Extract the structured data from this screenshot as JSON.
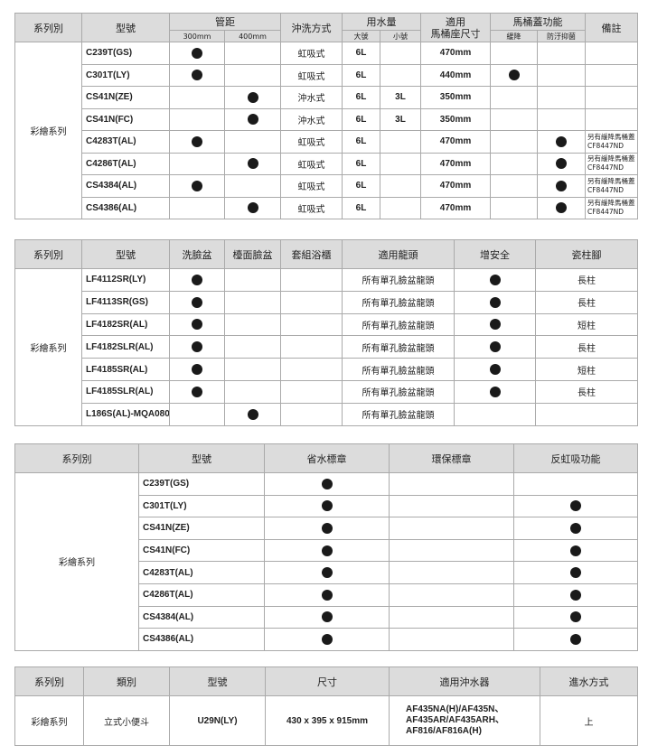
{
  "table1": {
    "headers": {
      "series": "系列別",
      "model": "型號",
      "pipe": "管距",
      "p300": "300mm",
      "p400": "400mm",
      "flush": "沖洗方式",
      "water": "用水量",
      "big": "大號",
      "small": "小號",
      "seat": "適用\n馬桶座尺寸",
      "lid": "馬桶蓋功能",
      "slow": "緩降",
      "anti": "防汙抑菌",
      "note": "備註"
    },
    "series": "彩繪系列",
    "rows": [
      {
        "model": "C239T(GS)",
        "p300": true,
        "p400": false,
        "flush": "虹吸式",
        "big": "6L",
        "small": "",
        "seat": "470mm",
        "slow": false,
        "anti": false,
        "note": ""
      },
      {
        "model": "C301T(LY)",
        "p300": true,
        "p400": false,
        "flush": "虹吸式",
        "big": "6L",
        "small": "",
        "seat": "440mm",
        "slow": true,
        "anti": false,
        "note": ""
      },
      {
        "model": "CS41N(ZE)",
        "p300": false,
        "p400": true,
        "flush": "沖水式",
        "big": "6L",
        "small": "3L",
        "seat": "350mm",
        "slow": false,
        "anti": false,
        "note": ""
      },
      {
        "model": "CS41N(FC)",
        "p300": false,
        "p400": true,
        "flush": "沖水式",
        "big": "6L",
        "small": "3L",
        "seat": "350mm",
        "slow": false,
        "anti": false,
        "note": ""
      },
      {
        "model": "C4283T(AL)",
        "p300": true,
        "p400": false,
        "flush": "虹吸式",
        "big": "6L",
        "small": "",
        "seat": "470mm",
        "slow": false,
        "anti": true,
        "note": "另有緩降馬桶蓋CF8447ND"
      },
      {
        "model": "C4286T(AL)",
        "p300": false,
        "p400": true,
        "flush": "虹吸式",
        "big": "6L",
        "small": "",
        "seat": "470mm",
        "slow": false,
        "anti": true,
        "note": "另有緩降馬桶蓋CF8447ND"
      },
      {
        "model": "CS4384(AL)",
        "p300": true,
        "p400": false,
        "flush": "虹吸式",
        "big": "6L",
        "small": "",
        "seat": "470mm",
        "slow": false,
        "anti": true,
        "note": "另有緩降馬桶蓋CF8447ND"
      },
      {
        "model": "CS4386(AL)",
        "p300": false,
        "p400": true,
        "flush": "虹吸式",
        "big": "6L",
        "small": "",
        "seat": "470mm",
        "slow": false,
        "anti": true,
        "note": "另有緩降馬桶蓋CF8447ND"
      }
    ]
  },
  "table2": {
    "headers": [
      "系列別",
      "型號",
      "洗臉盆",
      "檯面臉盆",
      "套組浴櫃",
      "適用龍頭",
      "增安全",
      "瓷柱腳"
    ],
    "series": "彩繪系列",
    "rows": [
      {
        "model": "LF4112SR(LY)",
        "basin": true,
        "counter": false,
        "set": false,
        "faucet": "所有單孔臉盆龍頭",
        "safe": true,
        "pedestal": "長柱"
      },
      {
        "model": "LF4113SR(GS)",
        "basin": true,
        "counter": false,
        "set": false,
        "faucet": "所有單孔臉盆龍頭",
        "safe": true,
        "pedestal": "長柱"
      },
      {
        "model": "LF4182SR(AL)",
        "basin": true,
        "counter": false,
        "set": false,
        "faucet": "所有單孔臉盆龍頭",
        "safe": true,
        "pedestal": "短柱"
      },
      {
        "model": "LF4182SLR(AL)",
        "basin": true,
        "counter": false,
        "set": false,
        "faucet": "所有單孔臉盆龍頭",
        "safe": true,
        "pedestal": "長柱"
      },
      {
        "model": "LF4185SR(AL)",
        "basin": true,
        "counter": false,
        "set": false,
        "faucet": "所有單孔臉盆龍頭",
        "safe": true,
        "pedestal": "短柱"
      },
      {
        "model": "LF4185SLR(AL)",
        "basin": true,
        "counter": false,
        "set": false,
        "faucet": "所有單孔臉盆龍頭",
        "safe": true,
        "pedestal": "長柱"
      },
      {
        "model": "L186S(AL)-MQA080",
        "basin": false,
        "counter": true,
        "set": false,
        "faucet": "所有單孔臉盆龍頭",
        "safe": false,
        "pedestal": ""
      }
    ]
  },
  "table3": {
    "headers": [
      "系列別",
      "型號",
      "省水標章",
      "環保標章",
      "反虹吸功能"
    ],
    "series": "彩繪系列",
    "rows": [
      {
        "model": "C239T(GS)",
        "water": true,
        "eco": false,
        "anti": false
      },
      {
        "model": "C301T(LY)",
        "water": true,
        "eco": false,
        "anti": true
      },
      {
        "model": "CS41N(ZE)",
        "water": true,
        "eco": false,
        "anti": true
      },
      {
        "model": "CS41N(FC)",
        "water": true,
        "eco": false,
        "anti": true
      },
      {
        "model": "C4283T(AL)",
        "water": true,
        "eco": false,
        "anti": true
      },
      {
        "model": "C4286T(AL)",
        "water": true,
        "eco": false,
        "anti": true
      },
      {
        "model": "CS4384(AL)",
        "water": true,
        "eco": false,
        "anti": true
      },
      {
        "model": "CS4386(AL)",
        "water": true,
        "eco": false,
        "anti": true
      }
    ]
  },
  "table4": {
    "headers": [
      "系列別",
      "類別",
      "型號",
      "尺寸",
      "適用沖水器",
      "進水方式"
    ],
    "row": {
      "series": "彩繪系列",
      "type": "立式小便斗",
      "model": "U29N(LY)",
      "size": "430 x 395 x 915mm",
      "flusher": "AF435NA(H)/AF435N、AF435AR/AF435ARH、AF816/AF816A(H)",
      "inlet": "上"
    }
  }
}
